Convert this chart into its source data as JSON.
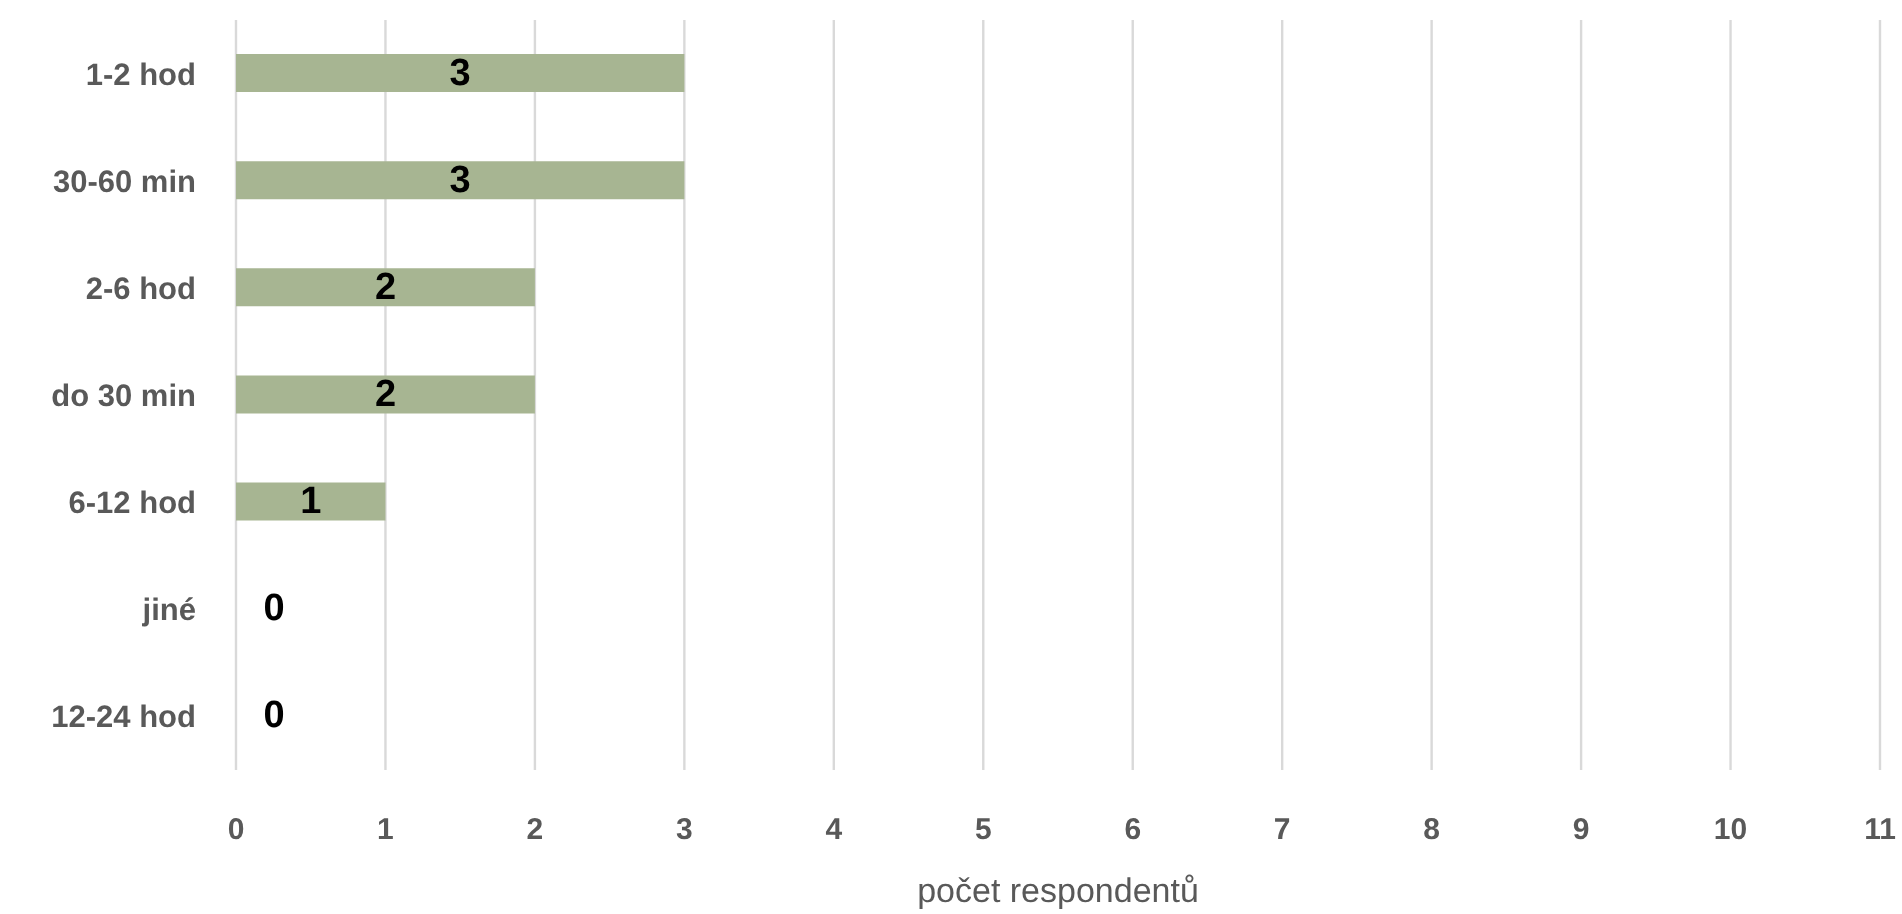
{
  "chart_data": {
    "type": "bar",
    "orientation": "horizontal",
    "categories": [
      "1-2 hod",
      "30-60 min",
      "2-6 hod",
      "do 30 min",
      "6-12 hod",
      "jiné",
      "12-24 hod"
    ],
    "values": [
      3,
      3,
      2,
      2,
      1,
      0,
      0
    ],
    "color": "#a7b592",
    "xlabel": "počet respondentů",
    "xlim": [
      0,
      11
    ],
    "xticks": [
      0,
      1,
      2,
      3,
      4,
      5,
      6,
      7,
      8,
      9,
      10,
      11
    ],
    "grid": "x",
    "data_labels": true
  }
}
